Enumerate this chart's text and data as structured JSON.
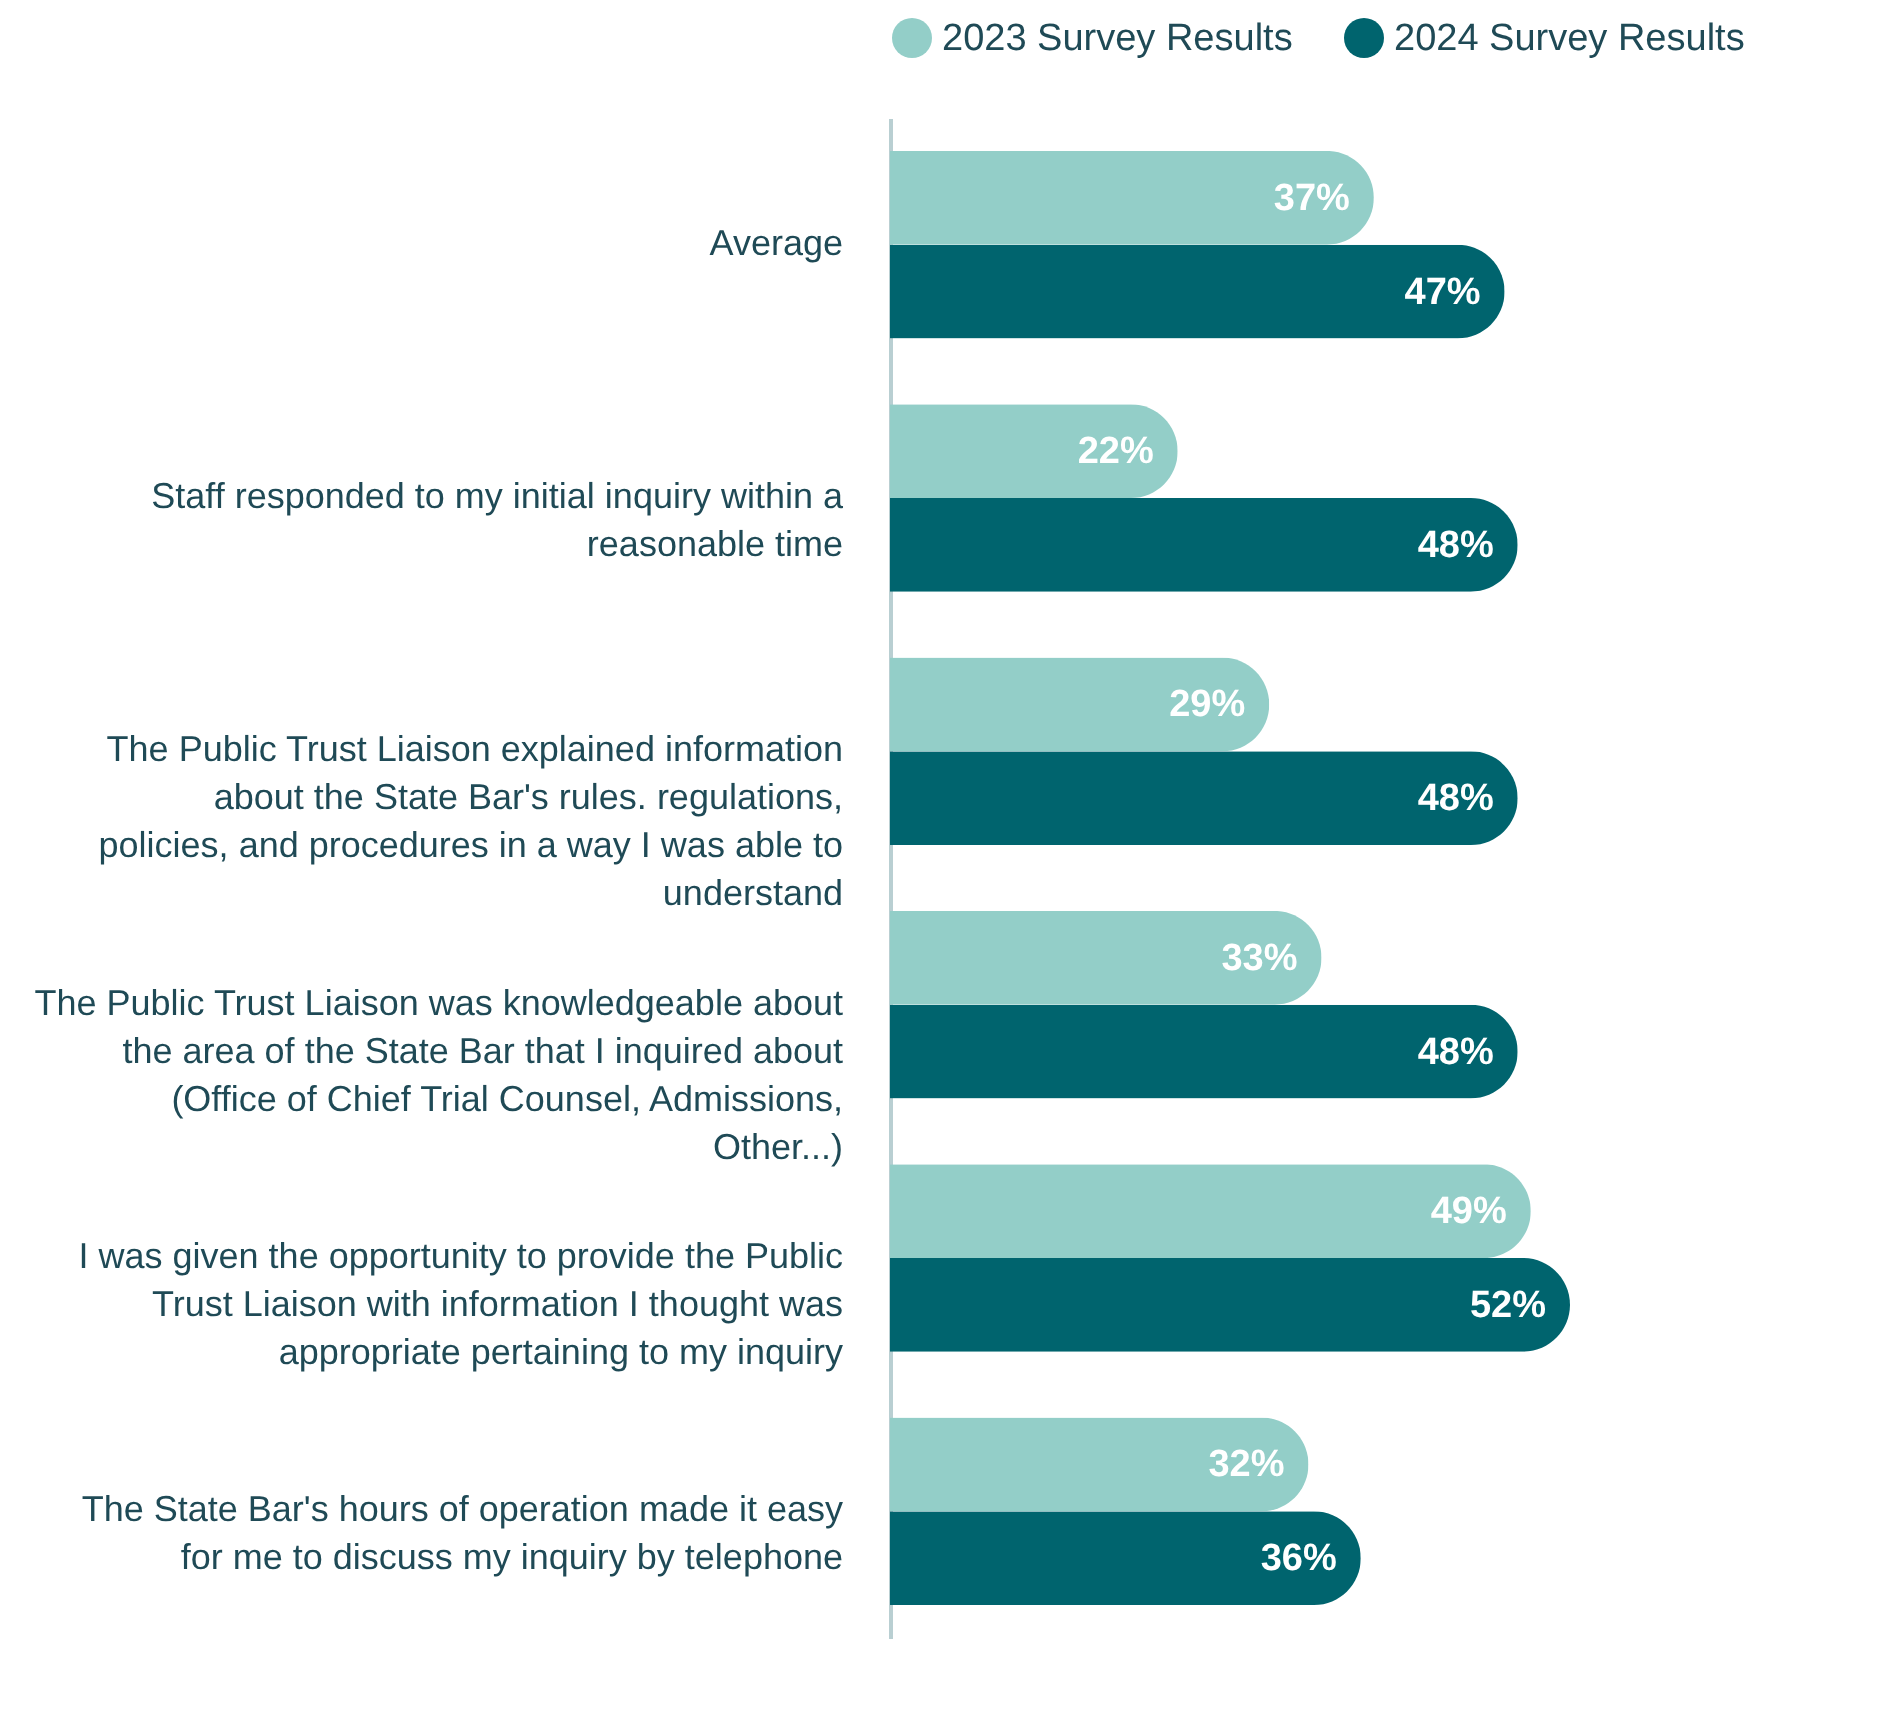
{
  "chart_data": {
    "type": "bar",
    "orientation": "horizontal",
    "categories": [
      "Average",
      "Staff responded to my initial inquiry within a reasonable time",
      "The Public Trust Liaison explained information about the State Bar's rules. regulations, policies, and procedures in a way I was able to understand",
      "The Public Trust Liaison was knowledgeable about the area of the State Bar that I inquired about (Office of Chief Trial Counsel, Admissions, Other...)",
      "I was given the opportunity to provide the Public Trust Liaison with information I thought was appropriate pertaining to my inquiry",
      "The State Bar's hours of operation made it easy for me to discuss my inquiry by telephone"
    ],
    "series": [
      {
        "name": "2023 Survey Results",
        "color": "#93cec8",
        "values": [
          37,
          22,
          29,
          33,
          49,
          32
        ],
        "value_labels": [
          "37%",
          "22%",
          "29%",
          "33%",
          "49%",
          "32%"
        ]
      },
      {
        "name": "2024 Survey Results",
        "color": "#00646e",
        "values": [
          47,
          48,
          48,
          48,
          52,
          36
        ],
        "value_labels": [
          "47%",
          "48%",
          "48%",
          "48%",
          "52%",
          "36%"
        ]
      }
    ],
    "legend": "top"
  }
}
